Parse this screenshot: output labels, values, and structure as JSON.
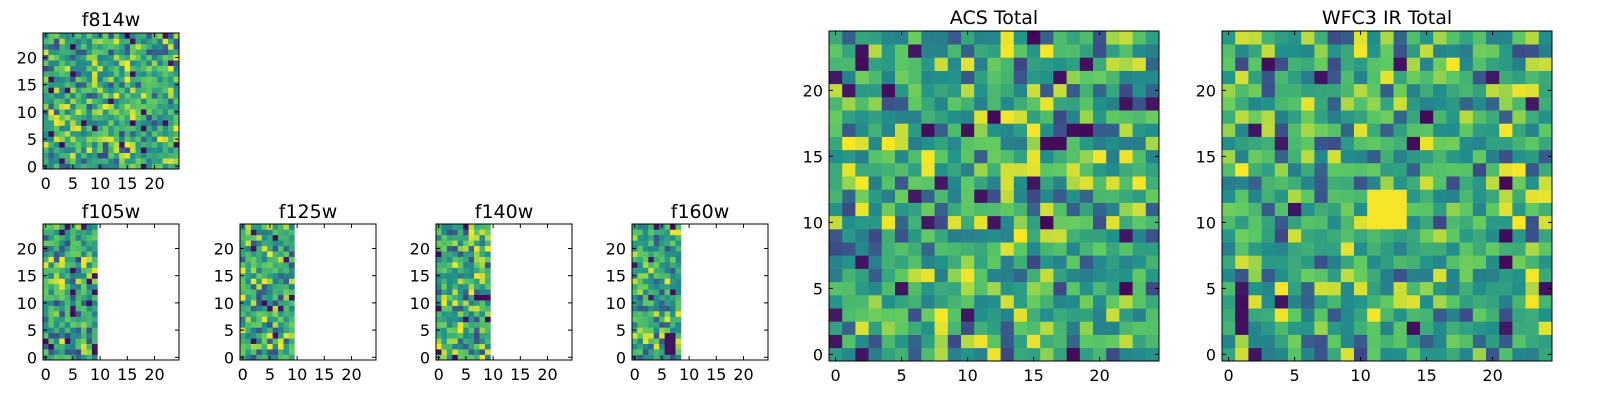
{
  "chart_data": [
    {
      "id": "f814w",
      "type": "heatmap",
      "title": "f814w",
      "grid_size": 25,
      "xlim": [
        -0.5,
        24.5
      ],
      "ylim": [
        -0.5,
        24.5
      ],
      "xticks": [
        0,
        5,
        10,
        15,
        20
      ],
      "yticks": [
        0,
        5,
        10,
        15,
        20
      ],
      "xticklabels": [
        "0",
        "5",
        "10",
        "15",
        "20"
      ],
      "yticklabels": [
        "0",
        "5",
        "10",
        "15",
        "20"
      ],
      "valid_columns": 25,
      "coverage_note": "full 25x25 noise field",
      "seed": 11
    },
    {
      "id": "f105w",
      "type": "heatmap",
      "title": "f105w",
      "grid_size": 25,
      "xlim": [
        -0.5,
        24.5
      ],
      "ylim": [
        -0.5,
        24.5
      ],
      "xticks": [
        0,
        5,
        10,
        15,
        20
      ],
      "yticks": [
        0,
        5,
        10,
        15,
        20
      ],
      "xticklabels": [
        "0",
        "5",
        "10",
        "15",
        "20"
      ],
      "yticklabels": [
        "0",
        "5",
        "10",
        "15",
        "20"
      ],
      "valid_columns": 10,
      "coverage_note": "data only for x <= 10, remainder blank",
      "seed": 23
    },
    {
      "id": "f125w",
      "type": "heatmap",
      "title": "f125w",
      "grid_size": 25,
      "xlim": [
        -0.5,
        24.5
      ],
      "ylim": [
        -0.5,
        24.5
      ],
      "xticks": [
        0,
        5,
        10,
        15,
        20
      ],
      "yticks": [
        0,
        5,
        10,
        15,
        20
      ],
      "xticklabels": [
        "0",
        "5",
        "10",
        "15",
        "20"
      ],
      "yticklabels": [
        "0",
        "5",
        "10",
        "15",
        "20"
      ],
      "valid_columns": 10,
      "coverage_note": "data only for x <= 10, remainder blank",
      "seed": 37
    },
    {
      "id": "f140w",
      "type": "heatmap",
      "title": "f140w",
      "grid_size": 25,
      "xlim": [
        -0.5,
        24.5
      ],
      "ylim": [
        -0.5,
        24.5
      ],
      "xticks": [
        0,
        5,
        10,
        15,
        20
      ],
      "yticks": [
        0,
        5,
        10,
        15,
        20
      ],
      "xticklabels": [
        "0",
        "5",
        "10",
        "15",
        "20"
      ],
      "yticklabels": [
        "0",
        "5",
        "10",
        "15",
        "20"
      ],
      "valid_columns": 10,
      "coverage_note": "data only for x <= 10, remainder blank",
      "seed": 41
    },
    {
      "id": "f160w",
      "type": "heatmap",
      "title": "f160w",
      "grid_size": 25,
      "xlim": [
        -0.5,
        24.5
      ],
      "ylim": [
        -0.5,
        24.5
      ],
      "xticks": [
        0,
        5,
        10,
        15,
        20
      ],
      "yticks": [
        0,
        5,
        10,
        15,
        20
      ],
      "xticklabels": [
        "0",
        "5",
        "10",
        "15",
        "20"
      ],
      "yticklabels": [
        "0",
        "5",
        "10",
        "15",
        "20"
      ],
      "valid_columns": 9,
      "coverage_note": "data only for x <= 9, remainder blank",
      "seed": 53
    },
    {
      "id": "acs-total",
      "type": "heatmap",
      "title": "ACS Total",
      "grid_size": 25,
      "xlim": [
        -0.5,
        24.5
      ],
      "ylim": [
        -0.5,
        24.5
      ],
      "xticks": [
        0,
        5,
        10,
        15,
        20
      ],
      "yticks": [
        0,
        5,
        10,
        15,
        20
      ],
      "xticklabels": [
        "0",
        "5",
        "10",
        "15",
        "20"
      ],
      "yticklabels": [
        "0",
        "5",
        "10",
        "15",
        "20"
      ],
      "valid_columns": 25,
      "coverage_note": "full 25x25 noise field",
      "seed": 67
    },
    {
      "id": "wfc3-ir-total",
      "type": "heatmap",
      "title": "WFC3 IR Total",
      "grid_size": 25,
      "xlim": [
        -0.5,
        24.5
      ],
      "ylim": [
        -0.5,
        24.5
      ],
      "xticks": [
        0,
        5,
        10,
        15,
        20
      ],
      "yticks": [
        0,
        5,
        10,
        15,
        20
      ],
      "xticklabels": [
        "0",
        "5",
        "10",
        "15",
        "20"
      ],
      "yticklabels": [
        "0",
        "5",
        "10",
        "15",
        "20"
      ],
      "valid_columns": 25,
      "coverage_note": "full field with bright source near (12,11)",
      "seed": 79
    }
  ],
  "colormap": [
    "#440154",
    "#3b528b",
    "#21918c",
    "#5ec962",
    "#fde725"
  ]
}
